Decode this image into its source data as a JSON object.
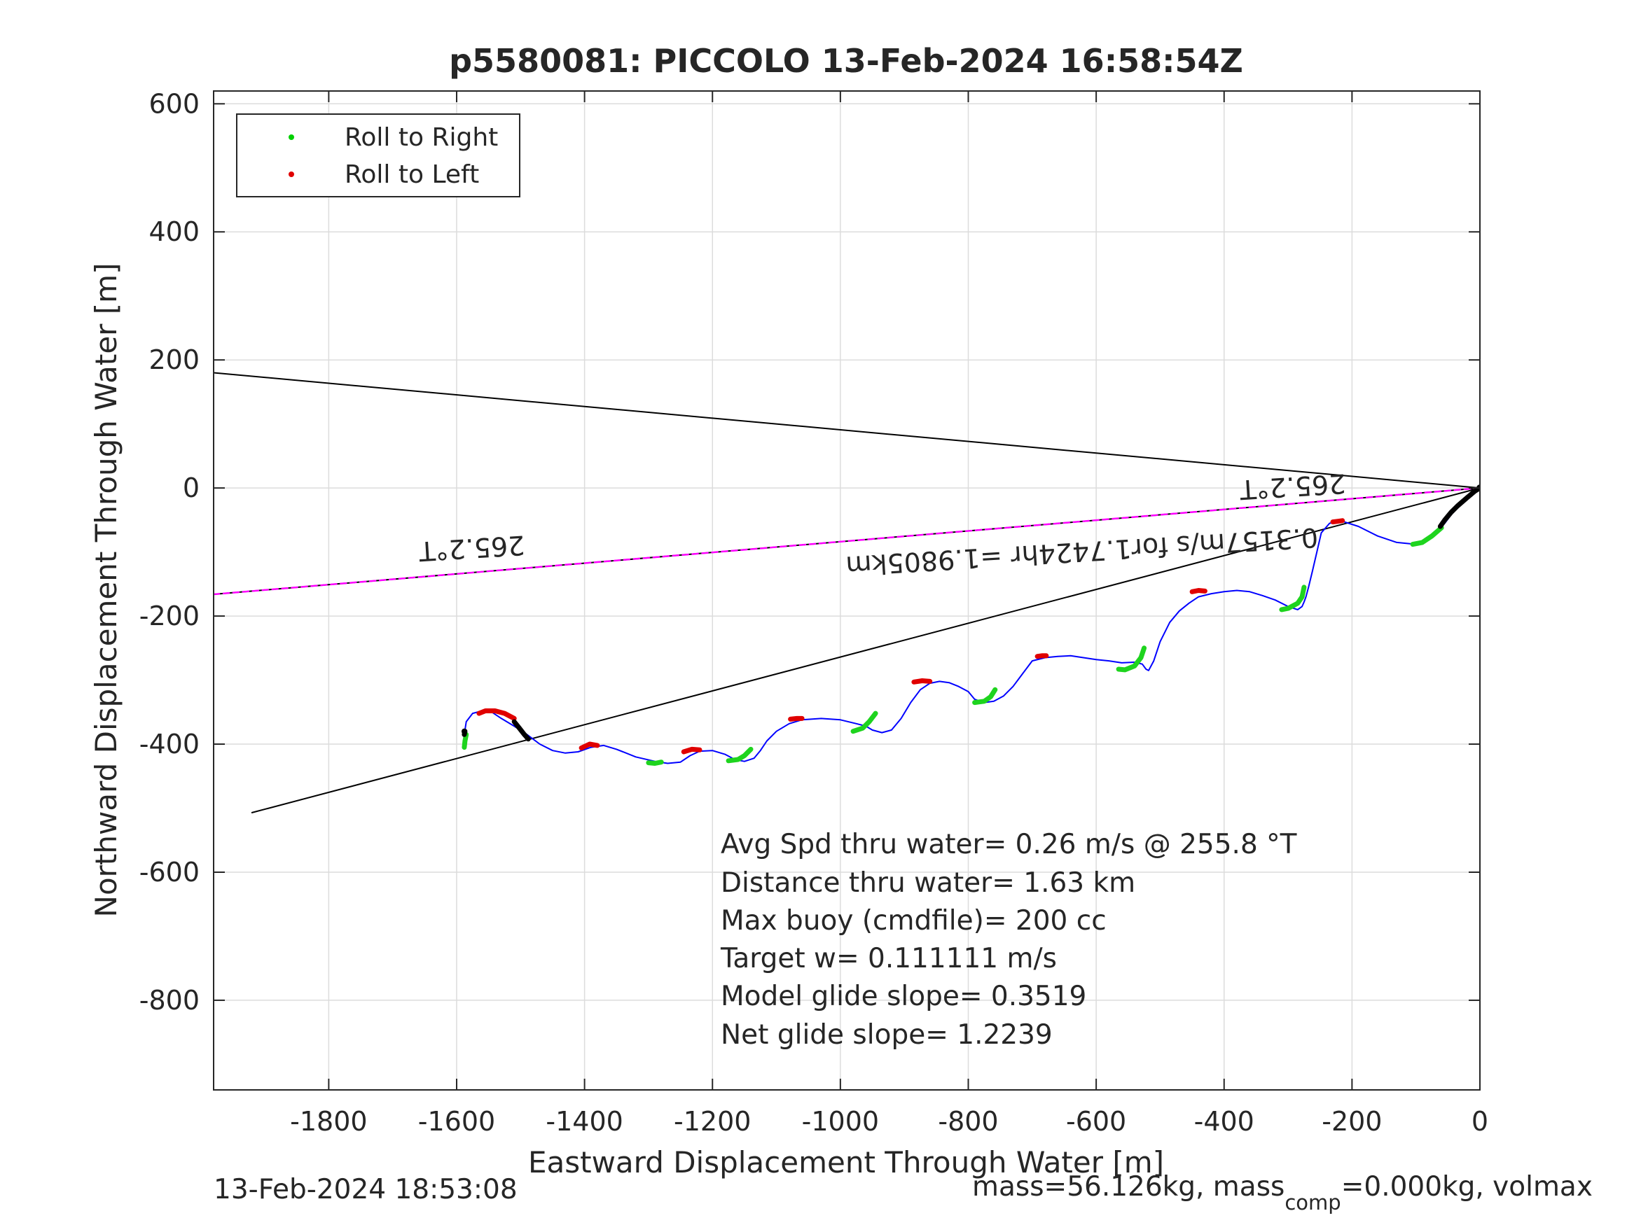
{
  "chart_data": {
    "type": "line",
    "title": "p5580081: PICCOLO 13-Feb-2024 16:58:54Z",
    "xlabel": "Eastward Displacement Through Water [m]",
    "ylabel": "Northward Displacement Through Water [m]",
    "xlim": [
      -1980,
      0
    ],
    "ylim": [
      -940,
      620
    ],
    "xticks": [
      -1800,
      -1600,
      -1400,
      -1200,
      -1000,
      -800,
      -600,
      -400,
      -200,
      0
    ],
    "yticks": [
      600,
      400,
      200,
      0,
      -200,
      -400,
      -600,
      -800
    ],
    "grid": true,
    "legend": {
      "placement": "top-left",
      "entries": [
        {
          "label": "Roll to Right",
          "color": "#00d000"
        },
        {
          "label": "Roll to Left",
          "color": "#e00000"
        }
      ]
    },
    "colors": {
      "track": "#0000ff",
      "heading": "#ff00ff",
      "lines": "#000000",
      "right": "#1ed41e",
      "left": "#e00000"
    },
    "track": {
      "x": [
        0,
        -20,
        -40,
        -55,
        -70,
        -85,
        -100,
        -130,
        -160,
        -190,
        -215,
        -235,
        -248,
        -255,
        -262,
        -268,
        -272,
        -275,
        -278,
        -285,
        -300,
        -320,
        -340,
        -360,
        -380,
        -400,
        -420,
        -440,
        -455,
        -470,
        -485,
        -500,
        -510,
        -518,
        -522,
        -528,
        -540,
        -560,
        -580,
        -600,
        -620,
        -640,
        -660,
        -680,
        -700,
        -715,
        -730,
        -745,
        -760,
        -775,
        -790,
        -800,
        -815,
        -830,
        -845,
        -860,
        -875,
        -890,
        -905,
        -920,
        -935,
        -950,
        -960,
        -975,
        -1000,
        -1030,
        -1060,
        -1080,
        -1100,
        -1115,
        -1125,
        -1135,
        -1150,
        -1165,
        -1180,
        -1200,
        -1220,
        -1235,
        -1250,
        -1270,
        -1290,
        -1320,
        -1350,
        -1370,
        -1390,
        -1410,
        -1430,
        -1450,
        -1470,
        -1490,
        -1510,
        -1530,
        -1545,
        -1560,
        -1575,
        -1585,
        -1588
      ],
      "y": [
        0,
        -15,
        -35,
        -55,
        -70,
        -82,
        -88,
        -85,
        -75,
        -60,
        -52,
        -55,
        -70,
        -100,
        -130,
        -155,
        -170,
        -178,
        -185,
        -190,
        -185,
        -175,
        -168,
        -162,
        -160,
        -162,
        -165,
        -170,
        -180,
        -192,
        -210,
        -240,
        -270,
        -285,
        -283,
        -275,
        -272,
        -273,
        -270,
        -268,
        -265,
        -262,
        -263,
        -265,
        -270,
        -290,
        -310,
        -325,
        -333,
        -335,
        -330,
        -318,
        -310,
        -304,
        -302,
        -305,
        -315,
        -335,
        -360,
        -378,
        -382,
        -378,
        -372,
        -368,
        -362,
        -360,
        -362,
        -368,
        -380,
        -395,
        -410,
        -422,
        -427,
        -424,
        -416,
        -410,
        -411,
        -418,
        -428,
        -430,
        -427,
        -420,
        -408,
        -402,
        -405,
        -412,
        -414,
        -410,
        -400,
        -385,
        -372,
        -360,
        -350,
        -348,
        -352,
        -365,
        -385
      ]
    },
    "right_roll_segments": [
      {
        "x": [
          -60,
          -75,
          -90,
          -105
        ],
        "y": [
          -62,
          -75,
          -85,
          -88
        ]
      },
      {
        "x": [
          -275,
          -278,
          -285,
          -300,
          -310
        ],
        "y": [
          -155,
          -170,
          -180,
          -188,
          -190
        ]
      },
      {
        "x": [
          -525,
          -530,
          -540,
          -555,
          -565
        ],
        "y": [
          -250,
          -265,
          -278,
          -284,
          -283
        ]
      },
      {
        "x": [
          -758,
          -765,
          -775,
          -790
        ],
        "y": [
          -315,
          -326,
          -333,
          -335
        ]
      },
      {
        "x": [
          -945,
          -955,
          -965,
          -980
        ],
        "y": [
          -352,
          -365,
          -375,
          -380
        ]
      },
      {
        "x": [
          -1140,
          -1150,
          -1160,
          -1175
        ],
        "y": [
          -408,
          -418,
          -424,
          -426
        ]
      },
      {
        "x": [
          -1280,
          -1290,
          -1300
        ],
        "y": [
          -428,
          -430,
          -429
        ]
      },
      {
        "x": [
          -1585,
          -1587,
          -1588
        ],
        "y": [
          -385,
          -395,
          -405
        ]
      }
    ],
    "left_roll_segments": [
      {
        "x": [
          -215,
          -222,
          -230
        ],
        "y": [
          -51,
          -52,
          -53
        ]
      },
      {
        "x": [
          -430,
          -440,
          -450
        ],
        "y": [
          -161,
          -160,
          -162
        ]
      },
      {
        "x": [
          -678,
          -685,
          -692
        ],
        "y": [
          -262,
          -262,
          -263
        ]
      },
      {
        "x": [
          -860,
          -872,
          -885
        ],
        "y": [
          -302,
          -301,
          -303
        ]
      },
      {
        "x": [
          -1060,
          -1068,
          -1078
        ],
        "y": [
          -360,
          -360,
          -361
        ]
      },
      {
        "x": [
          -1220,
          -1232,
          -1245
        ],
        "y": [
          -409,
          -408,
          -412
        ]
      },
      {
        "x": [
          -1380,
          -1392,
          -1405
        ],
        "y": [
          -402,
          -400,
          -406
        ]
      },
      {
        "x": [
          -1510,
          -1525,
          -1540,
          -1555,
          -1565
        ],
        "y": [
          -360,
          -352,
          -348,
          -348,
          -352
        ]
      }
    ],
    "black_segments": [
      {
        "x": [
          0,
          -8,
          -20,
          -35,
          -45,
          -55,
          -62
        ],
        "y": [
          0,
          -5,
          -15,
          -28,
          -38,
          -50,
          -60
        ]
      },
      {
        "x": [
          -1488,
          -1495,
          -1502,
          -1510
        ],
        "y": [
          -392,
          -384,
          -375,
          -365
        ]
      },
      {
        "x": [
          -1587,
          -1588
        ],
        "y": [
          -380,
          -385
        ]
      }
    ],
    "reference_lines": [
      {
        "x": [
          -1980,
          0
        ],
        "y": [
          180,
          0
        ]
      },
      {
        "x": [
          -1920,
          0
        ],
        "y": [
          -507,
          0
        ]
      }
    ],
    "heading_line": {
      "x": [
        -1980,
        0
      ],
      "y": [
        -166,
        0
      ]
    },
    "annotations": {
      "heading_left": "265.2°T",
      "heading_right": "265.2°T",
      "speed": "0.3157m/s for1.7424hr =1.9805km"
    },
    "stats": [
      "Avg Spd thru water=  0.26 m/s @ 255.8 °T",
      "Distance thru water=  1.63 km",
      "Max buoy (cmdfile)= 200 cc",
      "Target w= 0.111111 m/s",
      "Model glide slope= 0.3519",
      "Net glide slope= 1.2239"
    ],
    "footer_left": "13-Feb-2024 18:53:08",
    "footer_right": "mass=56.126kg, mass",
    "footer_right_sub": "comp",
    "footer_right_tail": "=0.000kg, volmax"
  }
}
